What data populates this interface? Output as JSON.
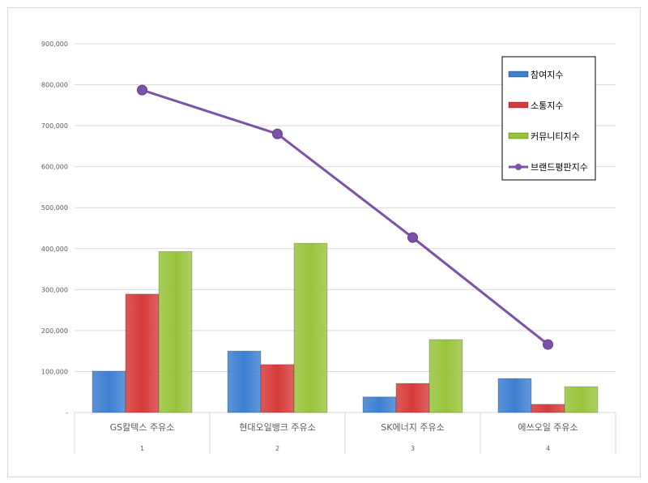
{
  "chart_data": {
    "type": "bar",
    "categories": [
      "GS칼텍스 주유소",
      "현대오일뱅크 주유소",
      "SK에너지 주유소",
      "에쓰오일 주유소"
    ],
    "category_numbers": [
      "1",
      "2",
      "3",
      "4"
    ],
    "series": [
      {
        "name": "참여지수",
        "type": "bar",
        "color": "#3d7fd1",
        "values": [
          101000,
          150000,
          38000,
          83000
        ]
      },
      {
        "name": "소통지수",
        "type": "bar",
        "color": "#d63b3b",
        "values": [
          289000,
          117000,
          71000,
          20000
        ]
      },
      {
        "name": "커뮤니티지수",
        "type": "bar",
        "color": "#98c43c",
        "values": [
          393000,
          413000,
          178000,
          63000
        ]
      },
      {
        "name": "브랜드평판지수",
        "type": "line",
        "color": "#7a52a8",
        "values": [
          787000,
          680000,
          427000,
          166000
        ]
      }
    ],
    "y_ticks": [
      "-",
      "100,000",
      "200,000",
      "300,000",
      "400,000",
      "500,000",
      "600,000",
      "700,000",
      "800,000",
      "900,000"
    ],
    "ylim": [
      0,
      900000
    ],
    "grid": true,
    "legend_position": "top-right"
  }
}
